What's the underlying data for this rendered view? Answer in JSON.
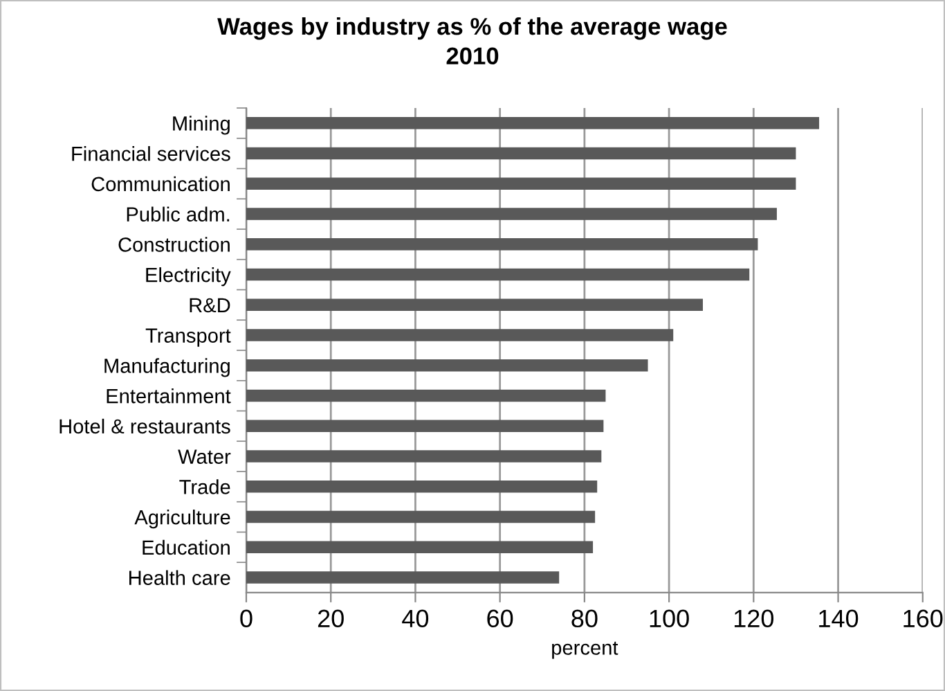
{
  "chart_data": {
    "type": "bar",
    "orientation": "horizontal",
    "title": "Wages by industry as % of the average wage\n2010",
    "xlabel": "percent",
    "categories": [
      "Mining",
      "Financial services",
      "Communication",
      "Public adm.",
      "Construction",
      "Electricity",
      "R&D",
      "Transport",
      "Manufacturing",
      "Entertainment",
      "Hotel & restaurants",
      "Water",
      "Trade",
      "Agriculture",
      "Education",
      "Health care"
    ],
    "values": [
      135.5,
      130,
      130,
      125.5,
      121,
      119,
      108,
      101,
      95,
      85,
      84.5,
      84,
      83,
      82.5,
      82,
      74
    ],
    "color": "#595959",
    "xlim": [
      0,
      160
    ],
    "xticks": [
      0,
      20,
      40,
      60,
      80,
      100,
      120,
      140,
      160
    ],
    "grid": "x"
  }
}
